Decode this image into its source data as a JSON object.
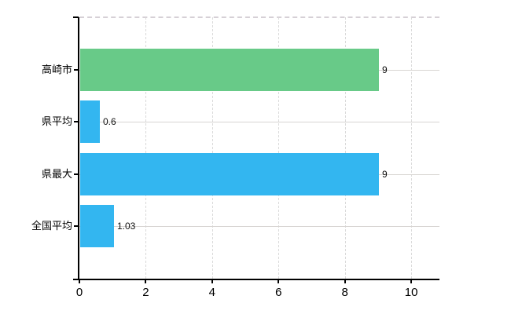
{
  "chart_data": {
    "type": "bar",
    "orientation": "horizontal",
    "title": "",
    "xlabel": "",
    "ylabel": "",
    "categories": [
      "高崎市",
      "県平均",
      "県最大",
      "全国平均"
    ],
    "series": [
      {
        "name": "value",
        "values": [
          9,
          0.6,
          9,
          1.03
        ]
      }
    ],
    "data_labels": [
      "9",
      "0.6",
      "9",
      "1.03"
    ],
    "bar_colors": [
      "#68ca88",
      "#33b6f0",
      "#33b6f0",
      "#33b6f0"
    ],
    "x_axis": {
      "range": [
        0,
        10.85
      ],
      "ticks": [
        0,
        2,
        4,
        6,
        8,
        10
      ],
      "tick_labels": [
        "0",
        "2",
        "4",
        "6",
        "8",
        "10"
      ]
    },
    "grid": {
      "vertical_style": "dashed",
      "horizontal_style": "solid",
      "top_border_style": "dashed"
    },
    "legend": false,
    "colors": {
      "axis": "#000000",
      "gridline": "#d9d9d9",
      "bar_green": "#68ca88",
      "bar_blue": "#33b6f0"
    }
  }
}
